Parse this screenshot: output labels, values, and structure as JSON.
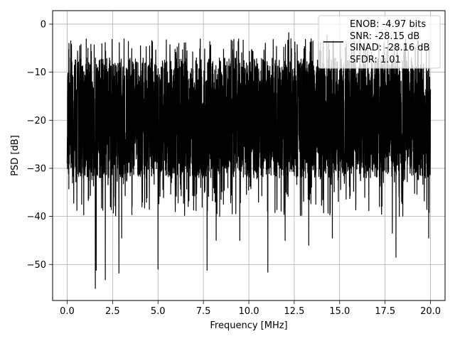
{
  "chart_data": {
    "type": "line",
    "xlabel": "Frequency [MHz]",
    "ylabel": "PSD [dB]",
    "xlim": [
      -0.8,
      20.8
    ],
    "ylim": [
      -57.5,
      2.8
    ],
    "x_ticks": [
      0.0,
      2.5,
      5.0,
      7.5,
      10.0,
      12.5,
      15.0,
      17.5,
      20.0
    ],
    "x_tick_labels": [
      "0.0",
      "2.5",
      "5.0",
      "7.5",
      "10.0",
      "12.5",
      "15.0",
      "17.5",
      "20.0"
    ],
    "y_ticks": [
      0,
      -10,
      -20,
      -30,
      -40,
      -50
    ],
    "y_tick_labels": [
      "0",
      "−10",
      "−20",
      "−30",
      "−40",
      "−50"
    ],
    "grid": true,
    "legend_position": "top-right",
    "line_color": "#000000",
    "series": [
      {
        "legend_lines": [
          "ENOB: -4.97 bits",
          "SNR: -28.15 dB",
          "SINAD: -28.16 dB",
          "SFDR: 1.01"
        ],
        "x_range": [
          0.0,
          20.0
        ],
        "approx_median": -18,
        "approx_envelope_upper": -6,
        "approx_envelope_lower": -32,
        "approx_max": -2,
        "notable_minima": [
          {
            "x": 1.55,
            "y": -55.0
          },
          {
            "x": 2.1,
            "y": -53.2
          },
          {
            "x": 1.6,
            "y": -51.2
          },
          {
            "x": 2.85,
            "y": -51.8
          },
          {
            "x": 5.0,
            "y": -51.0
          },
          {
            "x": 7.7,
            "y": -51.2
          },
          {
            "x": 11.05,
            "y": -51.6
          },
          {
            "x": 18.1,
            "y": -48.5
          },
          {
            "x": 3.0,
            "y": -44.5
          },
          {
            "x": 8.2,
            "y": -45.0
          },
          {
            "x": 9.5,
            "y": -45.0
          },
          {
            "x": 12.0,
            "y": -45.0
          },
          {
            "x": 13.3,
            "y": -46.0
          },
          {
            "x": 14.6,
            "y": -44.5
          },
          {
            "x": 19.9,
            "y": -44.5
          },
          {
            "x": 0.8,
            "y": -37.5
          },
          {
            "x": 17.9,
            "y": -43.5
          }
        ],
        "notable_maxima": [
          {
            "x": 0.1,
            "y": -4.0
          },
          {
            "x": 0.2,
            "y": -3.5
          },
          {
            "x": 0.7,
            "y": -4.5
          },
          {
            "x": 12.2,
            "y": -1.8
          },
          {
            "x": 14.3,
            "y": -2.3
          },
          {
            "x": 18.0,
            "y": -4.3
          }
        ]
      }
    ]
  }
}
